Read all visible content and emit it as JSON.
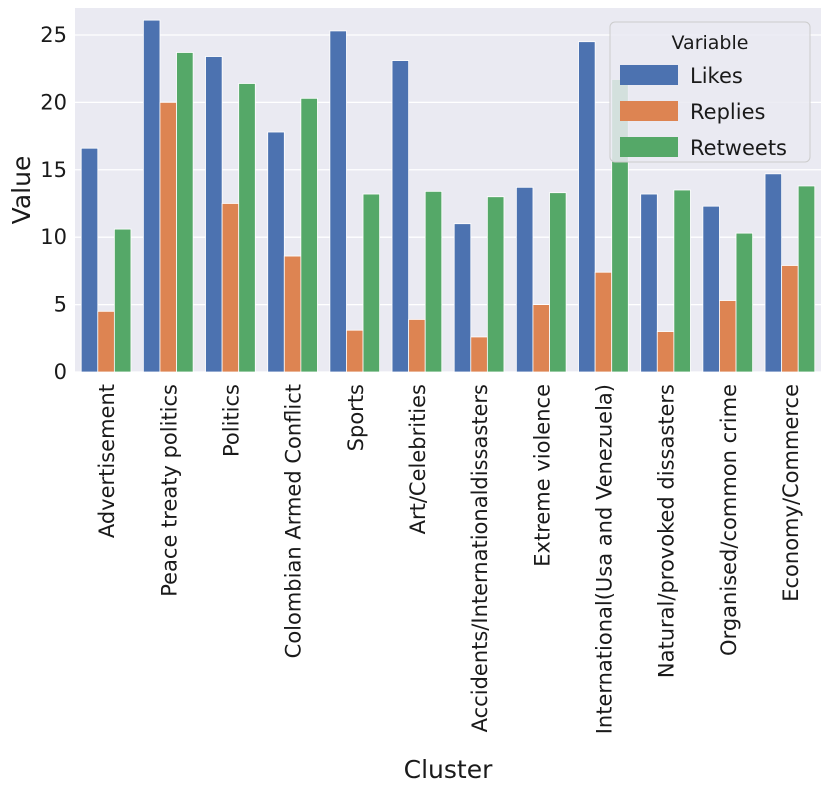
{
  "chart_data": {
    "type": "bar",
    "title": "",
    "xlabel": "Cluster",
    "ylabel": "Value",
    "ylim": [
      0,
      27
    ],
    "yticks": [
      0,
      5,
      10,
      15,
      20,
      25
    ],
    "grid": true,
    "legend_position": "top-right",
    "legend_title": "Variable",
    "categories": [
      "Advertisement",
      "Peace treaty politics",
      "Politics",
      "Colombian Armed Conflict",
      "Sports",
      "Art/Celebrities",
      "Accidents/Internationaldissasters",
      "Extreme violence",
      "International(Usa and Venezuela)",
      "Natural/provoked dissasters",
      "Organised/common crime",
      "Economy/Commerce"
    ],
    "series": [
      {
        "name": "Likes",
        "color": "#4c72b0",
        "values": [
          16.6,
          26.1,
          23.4,
          17.8,
          25.3,
          23.1,
          11.0,
          13.7,
          24.5,
          13.2,
          12.3,
          14.7
        ]
      },
      {
        "name": "Replies",
        "color": "#dd8452",
        "values": [
          4.5,
          20.0,
          12.5,
          8.6,
          3.1,
          3.9,
          2.6,
          5.0,
          7.4,
          3.0,
          5.3,
          7.9
        ]
      },
      {
        "name": "Retweets",
        "color": "#55a868",
        "values": [
          10.6,
          23.7,
          21.4,
          20.3,
          13.2,
          13.4,
          13.0,
          13.3,
          21.7,
          13.5,
          10.3,
          13.8
        ]
      }
    ],
    "background_color": "#eaeaf2"
  }
}
